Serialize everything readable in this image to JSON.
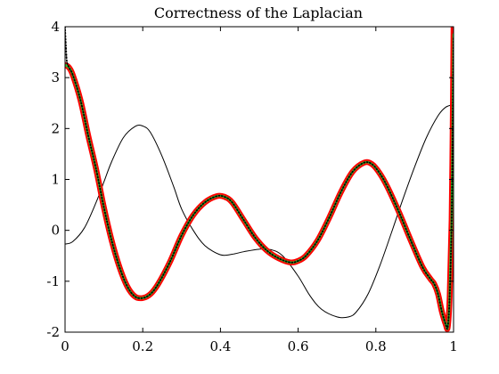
{
  "chart_data": {
    "type": "line",
    "title": "Correctness of the Laplacian",
    "xlabel": "",
    "ylabel": "",
    "xlim": [
      0,
      1
    ],
    "ylim": [
      -2,
      4
    ],
    "x_ticks": [
      0,
      0.2,
      0.4,
      0.6,
      0.8,
      1
    ],
    "x_tick_labels": [
      "0",
      "0.2",
      "0.4",
      "0.6",
      "0.8",
      "1"
    ],
    "y_ticks": [
      -2,
      -1,
      0,
      1,
      2,
      3,
      4
    ],
    "y_tick_labels": [
      "-2",
      "-1",
      "0",
      "1",
      "2",
      "3",
      "4"
    ],
    "grid": false,
    "box": true,
    "series": [
      {
        "color": "#000000",
        "style": "thin-solid",
        "x": [
          0,
          0.02,
          0.05,
          0.08,
          0.1,
          0.12,
          0.15,
          0.18,
          0.2,
          0.22,
          0.25,
          0.28,
          0.3,
          0.33,
          0.36,
          0.4,
          0.43,
          0.46,
          0.5,
          0.53,
          0.56,
          0.6,
          0.63,
          0.66,
          0.7,
          0.73,
          0.75,
          0.78,
          0.81,
          0.84,
          0.87,
          0.9,
          0.93,
          0.96,
          0.98,
          1.0
        ],
        "y": [
          -0.27,
          -0.22,
          0.05,
          0.55,
          0.95,
          1.35,
          1.82,
          2.04,
          2.05,
          1.92,
          1.45,
          0.85,
          0.42,
          0.0,
          -0.3,
          -0.48,
          -0.47,
          -0.42,
          -0.37,
          -0.38,
          -0.5,
          -0.9,
          -1.28,
          -1.55,
          -1.7,
          -1.7,
          -1.6,
          -1.25,
          -0.7,
          -0.05,
          0.62,
          1.25,
          1.82,
          2.25,
          2.42,
          2.47
        ]
      },
      {
        "color": "#ff0000",
        "style": "thick-solid",
        "x": [
          0,
          0.01,
          0.02,
          0.04,
          0.06,
          0.08,
          0.1,
          0.12,
          0.14,
          0.16,
          0.18,
          0.2,
          0.22,
          0.24,
          0.27,
          0.3,
          0.33,
          0.36,
          0.39,
          0.41,
          0.43,
          0.46,
          0.49,
          0.52,
          0.55,
          0.58,
          0.6,
          0.62,
          0.65,
          0.68,
          0.71,
          0.74,
          0.77,
          0.79,
          0.81,
          0.83,
          0.86,
          0.89,
          0.92,
          0.94,
          0.95,
          0.96,
          0.97,
          0.98,
          0.985,
          0.99,
          0.995,
          0.998,
          1.0
        ],
        "y": [
          3.25,
          3.2,
          3.05,
          2.55,
          1.85,
          1.2,
          0.45,
          -0.2,
          -0.72,
          -1.1,
          -1.3,
          -1.33,
          -1.25,
          -1.05,
          -0.62,
          -0.1,
          0.3,
          0.55,
          0.67,
          0.66,
          0.55,
          0.2,
          -0.15,
          -0.4,
          -0.55,
          -0.63,
          -0.6,
          -0.5,
          -0.2,
          0.25,
          0.75,
          1.15,
          1.33,
          1.3,
          1.12,
          0.85,
          0.35,
          -0.2,
          -0.72,
          -0.95,
          -1.05,
          -1.25,
          -1.6,
          -1.85,
          -1.9,
          -1.3,
          0.2,
          2.2,
          4.0
        ]
      },
      {
        "color": "#32cd32",
        "style": "medium-solid",
        "x": [
          0,
          0.01,
          0.02,
          0.04,
          0.06,
          0.08,
          0.1,
          0.12,
          0.14,
          0.16,
          0.18,
          0.2,
          0.22,
          0.24,
          0.27,
          0.3,
          0.33,
          0.36,
          0.39,
          0.41,
          0.43,
          0.46,
          0.49,
          0.52,
          0.55,
          0.58,
          0.6,
          0.62,
          0.65,
          0.68,
          0.71,
          0.74,
          0.77,
          0.79,
          0.81,
          0.83,
          0.86,
          0.89,
          0.92,
          0.94,
          0.95,
          0.96,
          0.97,
          0.98,
          0.985,
          0.99,
          0.995,
          0.998,
          1.0
        ],
        "y": [
          3.25,
          3.2,
          3.05,
          2.55,
          1.85,
          1.2,
          0.45,
          -0.2,
          -0.72,
          -1.1,
          -1.3,
          -1.33,
          -1.25,
          -1.05,
          -0.62,
          -0.1,
          0.3,
          0.55,
          0.67,
          0.66,
          0.55,
          0.2,
          -0.15,
          -0.4,
          -0.55,
          -0.63,
          -0.6,
          -0.5,
          -0.2,
          0.25,
          0.75,
          1.15,
          1.33,
          1.3,
          1.12,
          0.85,
          0.35,
          -0.2,
          -0.72,
          -0.95,
          -1.05,
          -1.25,
          -1.6,
          -1.85,
          -1.9,
          -1.3,
          0.2,
          2.2,
          3.85
        ]
      },
      {
        "color": "#000000",
        "style": "dotted",
        "x": [
          0,
          0.001,
          0.003,
          0.005,
          0.01,
          0.02,
          0.04,
          0.06,
          0.08,
          0.1,
          0.12,
          0.14,
          0.16,
          0.18,
          0.2,
          0.22,
          0.24,
          0.27,
          0.3,
          0.33,
          0.36,
          0.39,
          0.41,
          0.43,
          0.46,
          0.49,
          0.52,
          0.55,
          0.58,
          0.6,
          0.62,
          0.65,
          0.68,
          0.71,
          0.74,
          0.77,
          0.79,
          0.81,
          0.83,
          0.86,
          0.89,
          0.92,
          0.94,
          0.95,
          0.96,
          0.97,
          0.98,
          0.985,
          0.99,
          0.995,
          0.998,
          1.0
        ],
        "y": [
          4.0,
          3.8,
          3.5,
          3.3,
          3.2,
          3.05,
          2.55,
          1.85,
          1.2,
          0.45,
          -0.2,
          -0.72,
          -1.1,
          -1.3,
          -1.33,
          -1.25,
          -1.05,
          -0.62,
          -0.1,
          0.3,
          0.55,
          0.67,
          0.66,
          0.55,
          0.2,
          -0.15,
          -0.4,
          -0.55,
          -0.63,
          -0.6,
          -0.5,
          -0.2,
          0.25,
          0.75,
          1.15,
          1.33,
          1.3,
          1.12,
          0.85,
          0.35,
          -0.2,
          -0.72,
          -0.95,
          -1.05,
          -1.25,
          -1.6,
          -1.85,
          -1.9,
          -1.3,
          0.2,
          2.2,
          3.8
        ]
      }
    ]
  }
}
